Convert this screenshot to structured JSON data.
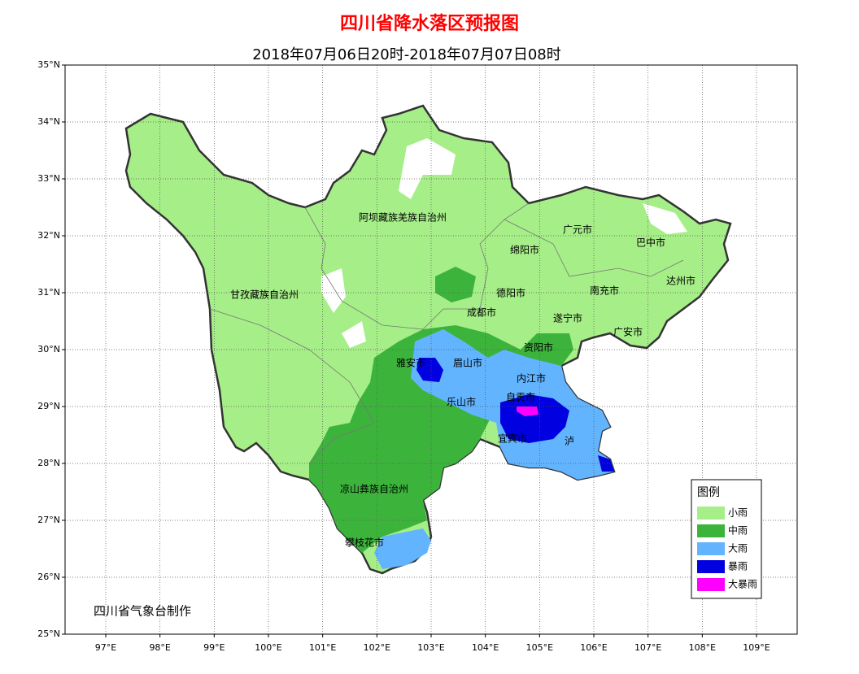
{
  "header": {
    "title": "四川省降水落区预报图",
    "subtitle": "2018年07月06日20时-2018年07月07日08时"
  },
  "map": {
    "xlim": [
      96.25,
      109.75
    ],
    "ylim": [
      25,
      35
    ],
    "lat_ticks": [
      {
        "value": 25,
        "label": "25°N"
      },
      {
        "value": 26,
        "label": "26°N"
      },
      {
        "value": 27,
        "label": "27°N"
      },
      {
        "value": 28,
        "label": "28°N"
      },
      {
        "value": 29,
        "label": "29°N"
      },
      {
        "value": 30,
        "label": "30°N"
      },
      {
        "value": 31,
        "label": "31°N"
      },
      {
        "value": 32,
        "label": "32°N"
      },
      {
        "value": 33,
        "label": "33°N"
      },
      {
        "value": 34,
        "label": "34°N"
      },
      {
        "value": 35,
        "label": "35°N"
      }
    ],
    "lon_ticks": [
      {
        "value": 97,
        "label": "97°E"
      },
      {
        "value": 98,
        "label": "98°E"
      },
      {
        "value": 99,
        "label": "99°E"
      },
      {
        "value": 100,
        "label": "100°E"
      },
      {
        "value": 101,
        "label": "101°E"
      },
      {
        "value": 102,
        "label": "102°E"
      },
      {
        "value": 103,
        "label": "103°E"
      },
      {
        "value": 104,
        "label": "104°E"
      },
      {
        "value": 105,
        "label": "105°E"
      },
      {
        "value": 106,
        "label": "106°E"
      },
      {
        "value": 107,
        "label": "107°E"
      },
      {
        "value": 108,
        "label": "108°E"
      },
      {
        "value": 109,
        "label": "109°E"
      }
    ],
    "grid": true,
    "places": [
      "阿坝藏族羌族自治州",
      "甘孜藏族自治州",
      "广元市",
      "绵阳市",
      "巴中市",
      "达州市",
      "南充市",
      "德阳市",
      "成都市",
      "遂宁市",
      "广安市",
      "资阳市",
      "雅安市",
      "眉山市",
      "内江市",
      "乐山市",
      "自贡市",
      "宜宾市",
      "泸",
      "凉山彝族自治州",
      "攀枝花市"
    ]
  },
  "legend": {
    "title": "图例",
    "items": [
      {
        "name": "小雨",
        "color": "#a6ee88"
      },
      {
        "name": "中雨",
        "color": "#3cb43c"
      },
      {
        "name": "大雨",
        "color": "#62b4ff"
      },
      {
        "name": "暴雨",
        "color": "#0000e0"
      },
      {
        "name": "大暴雨",
        "color": "#ff00ff"
      }
    ]
  },
  "footer": {
    "credit": "四川省气象台制作"
  }
}
